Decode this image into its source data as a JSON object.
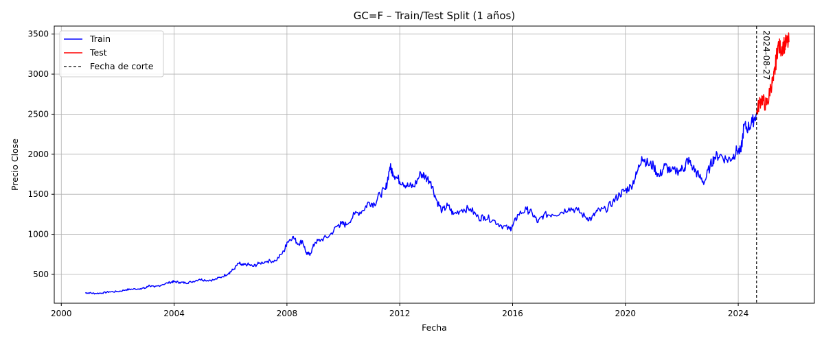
{
  "chart_data": {
    "type": "line",
    "title": "GC=F – Train/Test Split (1 años)",
    "xlabel": "Fecha",
    "ylabel": "Precio Close",
    "xlim": [
      1999.75,
      2026.7
    ],
    "ylim": [
      140,
      3600
    ],
    "x_ticks": [
      2000,
      2004,
      2008,
      2012,
      2016,
      2020,
      2024
    ],
    "x_tick_labels": [
      "2000",
      "2004",
      "2008",
      "2012",
      "2016",
      "2020",
      "2024"
    ],
    "y_ticks": [
      500,
      1000,
      1500,
      2000,
      2500,
      3000,
      3500
    ],
    "y_tick_labels": [
      "500",
      "1000",
      "1500",
      "2000",
      "2500",
      "3000",
      "3500"
    ],
    "grid": true,
    "legend_position": "top-left",
    "cutoff": {
      "x": 2024.65,
      "label": "2024-08-27",
      "legend": "Fecha de corte"
    },
    "series": [
      {
        "name": "Train",
        "color": "#0000ff",
        "x": [
          2000.85,
          2001.0,
          2001.2,
          2001.45,
          2001.7,
          2002.0,
          2002.3,
          2002.5,
          2002.8,
          2003.0,
          2003.1,
          2003.3,
          2003.6,
          2003.9,
          2004.0,
          2004.2,
          2004.4,
          2004.6,
          2004.9,
          2005.1,
          2005.4,
          2005.7,
          2005.95,
          2006.1,
          2006.3,
          2006.4,
          2006.6,
          2006.8,
          2007.0,
          2007.3,
          2007.6,
          2007.9,
          2008.0,
          2008.2,
          2008.4,
          2008.55,
          2008.7,
          2008.83,
          2009.0,
          2009.2,
          2009.5,
          2009.8,
          2009.92,
          2010.1,
          2010.4,
          2010.7,
          2010.9,
          2011.1,
          2011.3,
          2011.5,
          2011.65,
          2011.75,
          2011.9,
          2012.1,
          2012.3,
          2012.5,
          2012.75,
          2012.9,
          2013.1,
          2013.3,
          2013.5,
          2013.7,
          2013.9,
          2014.2,
          2014.5,
          2014.8,
          2015.0,
          2015.3,
          2015.6,
          2015.9,
          2016.0,
          2016.2,
          2016.5,
          2016.7,
          2016.9,
          2017.1,
          2017.4,
          2017.7,
          2018.0,
          2018.3,
          2018.6,
          2018.8,
          2019.0,
          2019.3,
          2019.55,
          2019.8,
          2020.0,
          2020.2,
          2020.4,
          2020.58,
          2020.8,
          2021.0,
          2021.2,
          2021.4,
          2021.6,
          2021.9,
          2022.1,
          2022.2,
          2022.4,
          2022.6,
          2022.8,
          2023.0,
          2023.15,
          2023.35,
          2023.6,
          2023.8,
          2023.95,
          2024.1,
          2024.2,
          2024.35,
          2024.5,
          2024.65
        ],
        "values": [
          270,
          268,
          262,
          268,
          282,
          285,
          308,
          315,
          322,
          330,
          362,
          340,
          375,
          405,
          410,
          400,
          395,
          405,
          440,
          428,
          430,
          470,
          520,
          560,
          640,
          610,
          625,
          600,
          635,
          665,
          670,
          790,
          900,
          970,
          880,
          920,
          750,
          760,
          900,
          930,
          980,
          1110,
          1130,
          1120,
          1250,
          1300,
          1400,
          1380,
          1500,
          1560,
          1840,
          1780,
          1700,
          1650,
          1600,
          1600,
          1760,
          1720,
          1660,
          1430,
          1290,
          1360,
          1250,
          1310,
          1320,
          1200,
          1220,
          1180,
          1110,
          1065,
          1100,
          1250,
          1310,
          1260,
          1150,
          1240,
          1250,
          1270,
          1330,
          1300,
          1210,
          1195,
          1290,
          1310,
          1400,
          1500,
          1550,
          1600,
          1750,
          1970,
          1880,
          1850,
          1720,
          1860,
          1780,
          1800,
          1830,
          1940,
          1830,
          1730,
          1650,
          1850,
          1960,
          1990,
          1930,
          1960,
          2050,
          2030,
          2350,
          2330,
          2400,
          2510
        ]
      },
      {
        "name": "Test",
        "color": "#ff0000",
        "x": [
          2024.65,
          2024.75,
          2024.85,
          2024.95,
          2025.05,
          2025.15,
          2025.25,
          2025.32,
          2025.4,
          2025.5,
          2025.6,
          2025.7,
          2025.8
        ],
        "values": [
          2510,
          2640,
          2700,
          2620,
          2650,
          2850,
          2920,
          3100,
          3350,
          3320,
          3360,
          3380,
          3400
        ]
      }
    ]
  }
}
